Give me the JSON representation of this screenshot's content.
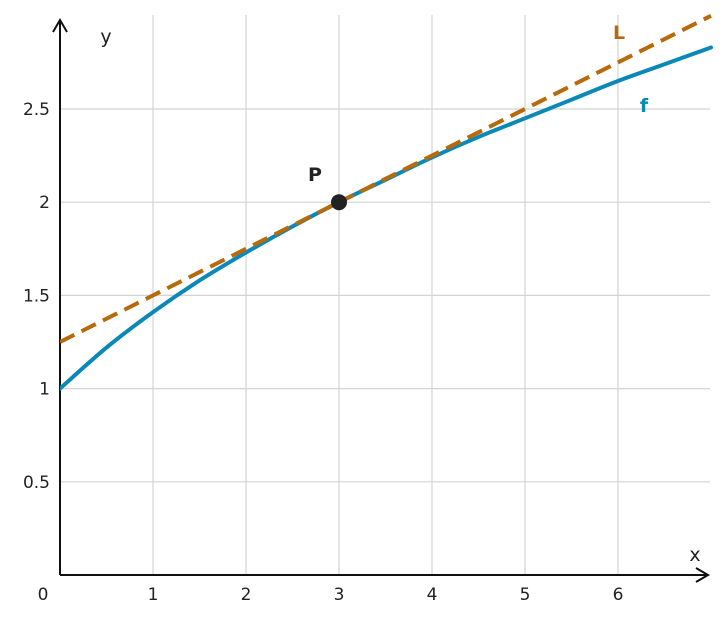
{
  "chart_data": {
    "type": "line",
    "xlabel": "x",
    "ylabel": "y",
    "xlim": [
      0,
      7
    ],
    "ylim": [
      0,
      2.95
    ],
    "origin_label": "0",
    "x_ticks": [
      1,
      2,
      3,
      4,
      5,
      6
    ],
    "x_tick_labels": [
      "1",
      "2",
      "3",
      "4",
      "5",
      "6"
    ],
    "y_ticks": [
      0.5,
      1,
      1.5,
      2,
      2.5
    ],
    "y_tick_labels": [
      "0.5",
      "1",
      "1.5",
      "2",
      "2.5"
    ],
    "grid": true,
    "series": [
      {
        "name": "f",
        "style": "solid",
        "color": "#0a88b8",
        "x": [
          0,
          0.5,
          1,
          1.5,
          2,
          2.5,
          3,
          3.5,
          4,
          4.5,
          5,
          5.5,
          6,
          6.5,
          7
        ],
        "y": [
          1,
          1.22,
          1.41,
          1.58,
          1.73,
          1.87,
          2,
          2.12,
          2.24,
          2.35,
          2.45,
          2.55,
          2.65,
          2.74,
          2.83
        ]
      },
      {
        "name": "L",
        "style": "dashed",
        "color": "#b8690a",
        "x": [
          0,
          7
        ],
        "y": [
          1.25,
          3.0
        ]
      }
    ],
    "points": [
      {
        "name": "P",
        "x": 3,
        "y": 2,
        "color": "#222222"
      }
    ]
  }
}
